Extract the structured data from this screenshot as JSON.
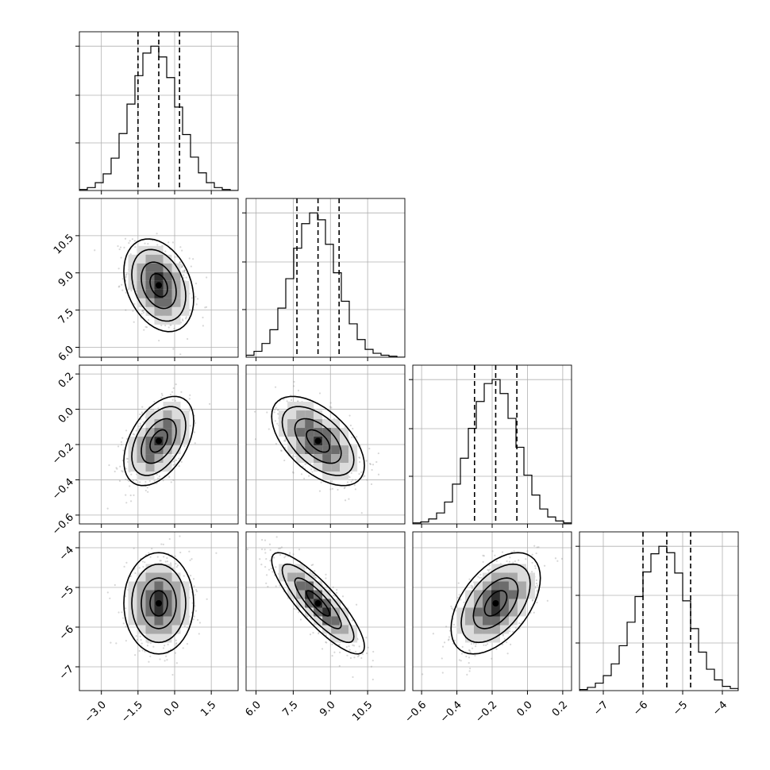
{
  "chart_data": {
    "type": "corner",
    "parameters": [
      {
        "range": [
          -3.9,
          2.6
        ],
        "ticks": [
          -3.0,
          -1.5,
          0.0,
          1.5
        ],
        "tick_labels": [
          "−3.0",
          "−1.5",
          "0.0",
          "1.5"
        ],
        "mean": -0.65,
        "sd": 0.65,
        "quantiles": [
          -1.5,
          -0.65,
          0.2
        ],
        "hist": [
          1,
          3,
          8,
          17,
          33,
          58,
          88,
          117,
          140,
          147,
          136,
          115,
          85,
          57,
          34,
          18,
          8,
          3,
          1,
          0
        ]
      },
      {
        "range": [
          5.6,
          12.0
        ],
        "ticks": [
          6.0,
          7.5,
          9.0,
          10.5
        ],
        "tick_labels": [
          "6.0",
          "7.5",
          "9.0",
          "10.5"
        ],
        "mean": 8.5,
        "sd": 0.85,
        "quantiles": [
          7.65,
          8.5,
          9.35
        ],
        "hist": [
          2,
          6,
          14,
          28,
          50,
          80,
          111,
          136,
          147,
          140,
          115,
          86,
          57,
          34,
          18,
          8,
          4,
          2,
          1,
          0
        ]
      },
      {
        "range": [
          -0.65,
          0.25
        ],
        "ticks": [
          -0.6,
          -0.4,
          -0.2,
          0.0,
          0.2
        ],
        "tick_labels": [
          "−0.6",
          "−0.4",
          "−0.2",
          "0.0",
          "0.2"
        ],
        "mean": -0.18,
        "sd": 0.115,
        "quantiles": [
          -0.3,
          -0.18,
          -0.06
        ],
        "hist": [
          1,
          2,
          5,
          11,
          22,
          40,
          66,
          96,
          123,
          141,
          145,
          131,
          106,
          77,
          49,
          29,
          15,
          7,
          3,
          1
        ]
      },
      {
        "range": [
          -7.6,
          -3.6
        ],
        "ticks": [
          -7,
          -6,
          -5,
          -4
        ],
        "tick_labels": [
          "−7",
          "−6",
          "−5",
          "−4"
        ],
        "mean": -5.4,
        "sd": 0.58,
        "quantiles": [
          -6.0,
          -5.4,
          -4.8
        ],
        "hist": [
          1,
          3,
          7,
          14,
          25,
          42,
          64,
          88,
          111,
          128,
          135,
          129,
          110,
          84,
          58,
          36,
          20,
          10,
          4,
          2
        ]
      }
    ],
    "correlations": {
      "1_0": -0.3,
      "2_0": 0.45,
      "2_1": -0.55,
      "3_0": 0.0,
      "3_1": -0.85,
      "3_2": 0.5
    },
    "grid": true
  }
}
